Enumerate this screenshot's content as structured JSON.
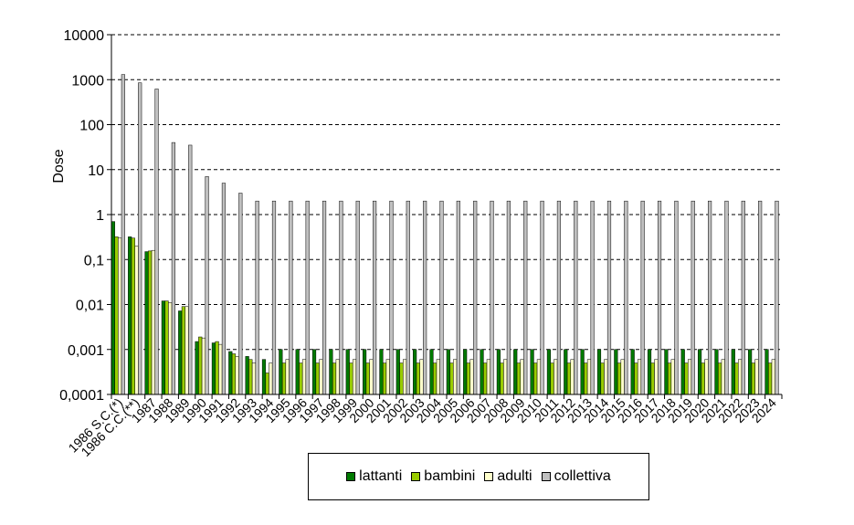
{
  "chart_data": {
    "type": "bar",
    "title": "",
    "xlabel": "",
    "ylabel": "Dose",
    "yscale": "log",
    "ylim": [
      0.0001,
      10000
    ],
    "yticks": [
      "10000",
      "1000",
      "100",
      "10",
      "1",
      "0,1",
      "0,01",
      "0,001",
      "0,0001"
    ],
    "grid": "horizontal dashed",
    "legend_position": "bottom",
    "categories": [
      "1986 S.C.(*)",
      "1986 C.C.(**)",
      "1987",
      "1988",
      "1989",
      "1990",
      "1991",
      "1992",
      "1993",
      "1994",
      "1995",
      "1996",
      "1997",
      "1998",
      "1999",
      "2000",
      "2001",
      "2002",
      "2003",
      "2004",
      "2005",
      "2006",
      "2007",
      "2008",
      "2009",
      "2010",
      "2011",
      "2012",
      "2013",
      "2014",
      "2015",
      "2016",
      "2017",
      "2018",
      "2019",
      "2020",
      "2021",
      "2022",
      "2023",
      "2024"
    ],
    "series": [
      {
        "name": "lattanti",
        "color": "#007a00",
        "values": [
          0.7,
          0.32,
          0.15,
          0.012,
          0.0072,
          0.0015,
          0.0014,
          0.0009,
          0.0007,
          0.0006,
          0.001,
          0.001,
          0.001,
          0.001,
          0.001,
          0.001,
          0.001,
          0.001,
          0.001,
          0.001,
          0.001,
          0.001,
          0.001,
          0.001,
          0.001,
          0.001,
          0.001,
          0.001,
          0.001,
          0.001,
          0.001,
          0.001,
          0.001,
          0.001,
          0.001,
          0.001,
          0.001,
          0.001,
          0.001,
          0.001
        ]
      },
      {
        "name": "bambini",
        "color": "#99cc00",
        "values": [
          0.32,
          0.3,
          0.155,
          0.012,
          0.009,
          0.0019,
          0.0015,
          0.0008,
          0.0006,
          0.0003,
          0.0005,
          0.0005,
          0.0005,
          0.0005,
          0.0005,
          0.0005,
          0.0005,
          0.0005,
          0.0005,
          0.0005,
          0.0005,
          0.0005,
          0.0005,
          0.0005,
          0.0005,
          0.0005,
          0.0005,
          0.0005,
          0.0005,
          0.0005,
          0.0005,
          0.0005,
          0.0005,
          0.0005,
          0.0005,
          0.0005,
          0.0005,
          0.0005,
          0.0005,
          0.0005
        ]
      },
      {
        "name": "adulti",
        "color": "#ffffcc",
        "values": [
          0.3,
          0.2,
          0.16,
          0.011,
          0.009,
          0.0018,
          0.0013,
          0.0007,
          0.0005,
          0.0005,
          0.0006,
          0.0006,
          0.0006,
          0.0006,
          0.0006,
          0.0006,
          0.0006,
          0.0006,
          0.0006,
          0.0006,
          0.0006,
          0.0006,
          0.0006,
          0.0006,
          0.0006,
          0.0006,
          0.0006,
          0.0006,
          0.0006,
          0.0006,
          0.0006,
          0.0006,
          0.0006,
          0.0006,
          0.0006,
          0.0006,
          0.0006,
          0.0006,
          0.0006,
          0.0006
        ]
      },
      {
        "name": "collettiva",
        "color": "#c0c0c0",
        "values": [
          1300,
          850,
          620,
          40,
          35,
          7,
          5,
          3,
          2,
          2,
          2,
          2,
          2,
          2,
          2,
          2,
          2,
          2,
          2,
          2,
          2,
          2,
          2,
          2,
          2,
          2,
          2,
          2,
          2,
          2,
          2,
          2,
          2,
          2,
          2,
          2,
          2,
          2,
          2,
          2
        ]
      }
    ]
  }
}
